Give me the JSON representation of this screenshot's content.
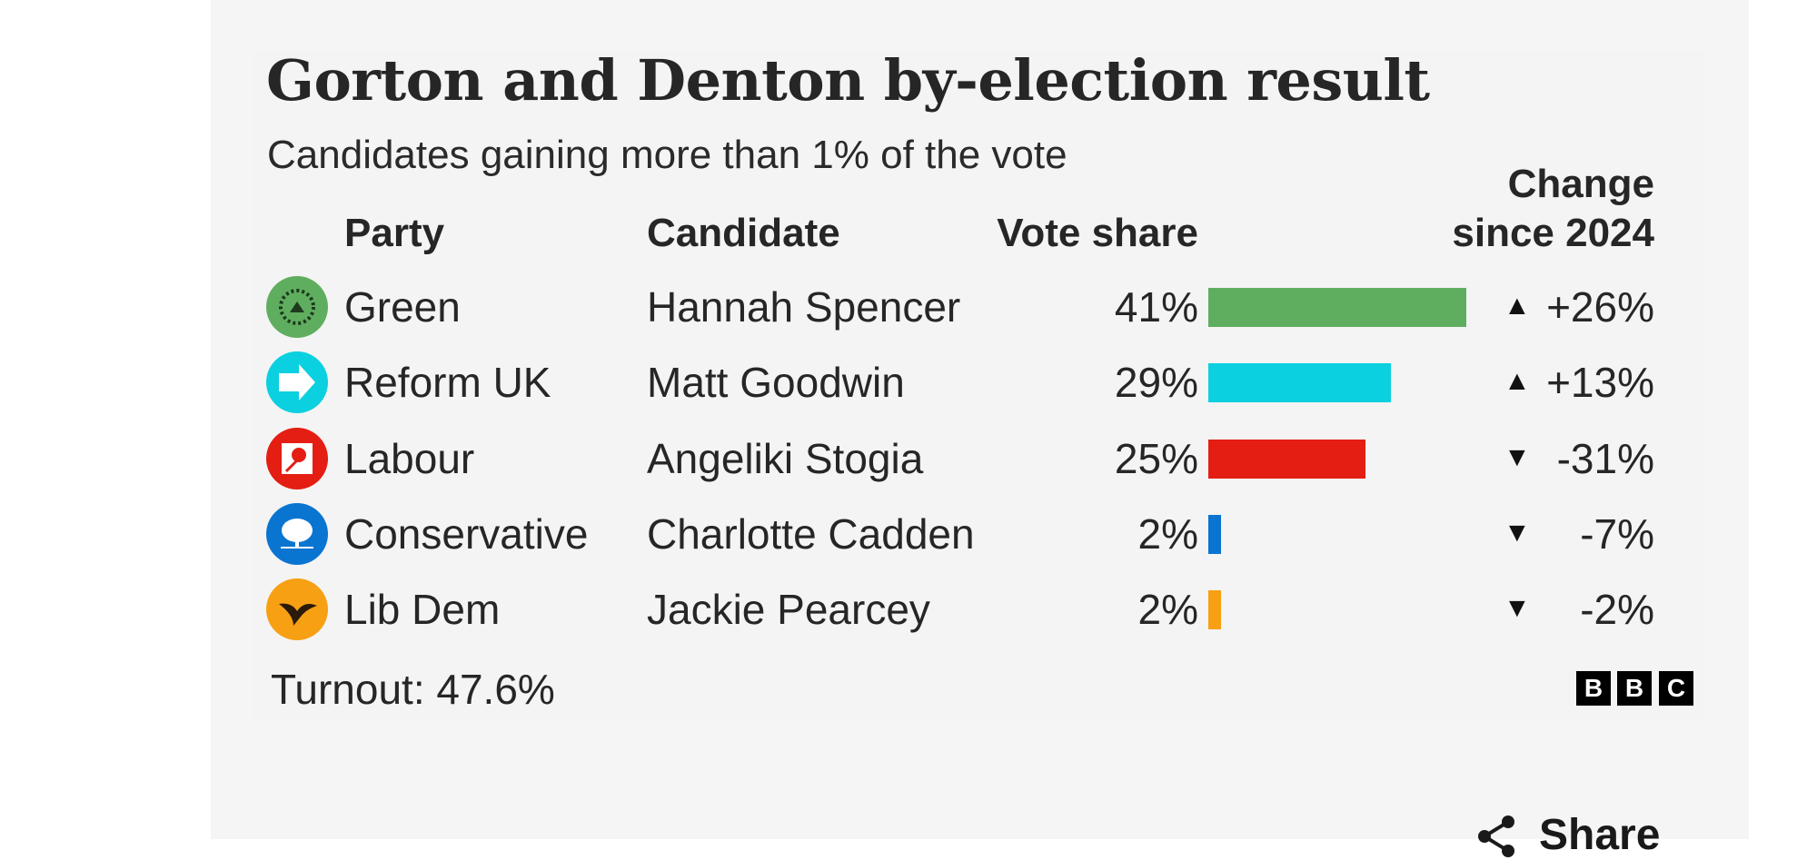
{
  "chart_data": {
    "type": "table",
    "title": "Gorton and Denton by-election result",
    "subtitle": "Candidates gaining more than 1% of the vote",
    "columns": {
      "party": "Party",
      "candidate": "Candidate",
      "vote_share": "Vote share",
      "change_line1": "Change",
      "change_line2": "since 2024"
    },
    "rows": [
      {
        "party": "Green",
        "candidate": "Hannah Spencer",
        "vote_share": 41,
        "vote_share_label": "41%",
        "change": 26,
        "change_label": "+26%",
        "direction": "up",
        "arrow": "▲",
        "color": "#5fae5f",
        "icon": "green-party-logo-icon"
      },
      {
        "party": "Reform UK",
        "candidate": "Matt Goodwin",
        "vote_share": 29,
        "vote_share_label": "29%",
        "change": 13,
        "change_label": "+13%",
        "direction": "up",
        "arrow": "▲",
        "color": "#0bd0df",
        "icon": "reform-uk-arrow-icon"
      },
      {
        "party": "Labour",
        "candidate": "Angeliki Stogia",
        "vote_share": 25,
        "vote_share_label": "25%",
        "change": -31,
        "change_label": "-31%",
        "direction": "down",
        "arrow": "▼",
        "color": "#e41e12",
        "icon": "labour-rose-icon"
      },
      {
        "party": "Conservative",
        "candidate": "Charlotte Cadden",
        "vote_share": 2,
        "vote_share_label": "2%",
        "change": -7,
        "change_label": "-7%",
        "direction": "down",
        "arrow": "▼",
        "color": "#0a74d1",
        "icon": "conservative-tree-icon"
      },
      {
        "party": "Lib Dem",
        "candidate": "Jackie Pearcey",
        "vote_share": 2,
        "vote_share_label": "2%",
        "change": -2,
        "change_label": "-2%",
        "direction": "down",
        "arrow": "▼",
        "color": "#f7a014",
        "icon": "lib-dem-bird-icon"
      }
    ],
    "turnout": "Turnout: 47.6%",
    "source_logo": [
      "B",
      "B",
      "C"
    ]
  },
  "share_label": "Share"
}
